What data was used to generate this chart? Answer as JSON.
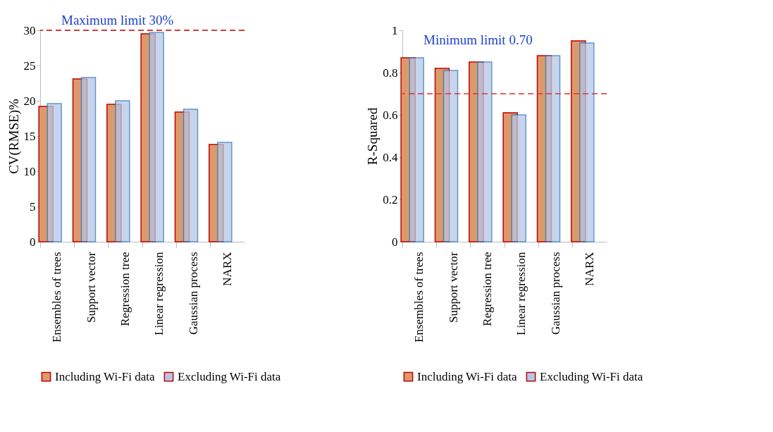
{
  "chart_data": [
    {
      "type": "bar",
      "ylabel": "CV(RMSE)%",
      "categories": [
        "Ensembles of trees",
        "Support vector",
        "Regression tree",
        "Linear regression",
        "Gaussian process",
        "NARX"
      ],
      "series": [
        {
          "name": "Including Wi-Fi data",
          "color": "#dc9a6c",
          "values": [
            19.2,
            23.1,
            19.5,
            29.5,
            18.4,
            13.8
          ]
        },
        {
          "name": "Excluding Wi-Fi data",
          "color": "#b4c7e7",
          "values": [
            19.6,
            23.3,
            20.0,
            29.7,
            18.8,
            14.1
          ]
        }
      ],
      "ylim": [
        0,
        30
      ],
      "yticks": [
        0,
        5,
        10,
        15,
        20,
        25,
        30
      ],
      "grid": false,
      "legend": "bottom",
      "ref_lines": [
        {
          "axis": "y",
          "value": 30,
          "label": "Maximum limit 30%",
          "color": "#c00000",
          "line_style": "dashed"
        }
      ]
    },
    {
      "type": "bar",
      "ylabel": "R-Squared",
      "categories": [
        "Ensembles of trees",
        "Support vector",
        "Regression tree",
        "Linear regression",
        "Gaussian process",
        "NARX"
      ],
      "series": [
        {
          "name": "Including Wi-Fi data",
          "color": "#dc9a6c",
          "values": [
            0.87,
            0.82,
            0.85,
            0.61,
            0.88,
            0.95
          ]
        },
        {
          "name": "Excluding Wi-Fi data",
          "color": "#b4c7e7",
          "values": [
            0.87,
            0.81,
            0.85,
            0.6,
            0.88,
            0.94
          ]
        }
      ],
      "ylim": [
        0,
        1
      ],
      "yticks": [
        0,
        0.2,
        0.4,
        0.6,
        0.8,
        1
      ],
      "grid": false,
      "legend": "bottom",
      "annotations": [
        "Minimum limit 0.70"
      ],
      "ref_lines": [
        {
          "axis": "y",
          "value": 0.7,
          "color": "#e03030",
          "line_style": "dashed"
        }
      ]
    }
  ]
}
